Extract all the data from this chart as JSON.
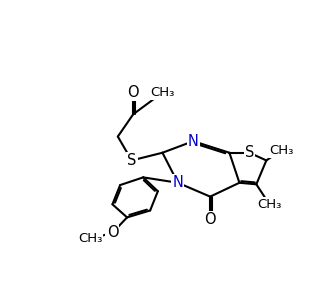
{
  "background_color": "#ffffff",
  "bond_color": "#000000",
  "N_color": "#0000cd",
  "bond_lw": 1.5,
  "font_size": 10.5,
  "small_font_size": 9.5,
  "figsize": [
    3.2,
    2.91
  ],
  "dpi": 100,
  "xlim": [
    0.0,
    10.0
  ],
  "ylim": [
    0.0,
    9.1
  ],
  "bl": 1.0
}
